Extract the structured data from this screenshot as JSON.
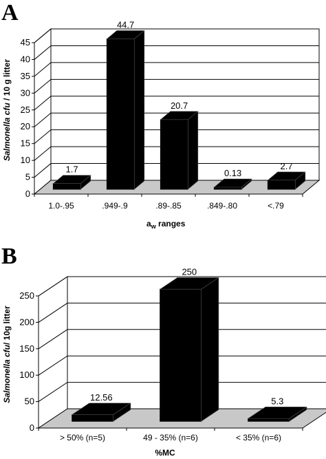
{
  "panels": {
    "a": {
      "letter": "A",
      "xlabel_main": "a",
      "xlabel_sub": "w",
      "xlabel_rest": " ranges",
      "ylabel_italic": "Salmonella cfu",
      "ylabel_rest": " / 10 g litter"
    },
    "b": {
      "letter": "B",
      "xlabel": "%MC",
      "ylabel_italic": "Salmonella cfu",
      "ylabel_rest": "/ 10g litter"
    }
  },
  "colors": {
    "bar": "#000000",
    "floor": "#c8c8c8",
    "grid": "#000000",
    "background": "#ffffff"
  },
  "chart_data": [
    {
      "type": "bar",
      "title": "",
      "xlabel": "aw ranges",
      "ylabel": "Salmonella cfu / 10 g litter",
      "categories": [
        "1.0-.95",
        ".949-.9",
        ".89-.85",
        ".849-.80",
        "<.79"
      ],
      "values": [
        1.7,
        44.7,
        20.7,
        0.13,
        2.7
      ],
      "value_labels": [
        "1.7",
        "44.7",
        "20.7",
        "0.13",
        "2.7"
      ],
      "yticks": [
        0,
        5,
        10,
        15,
        20,
        25,
        30,
        35,
        40,
        45
      ],
      "ylim": [
        0,
        45
      ],
      "grid": true,
      "style": "3d"
    },
    {
      "type": "bar",
      "title": "",
      "xlabel": "%MC",
      "ylabel": "Salmonella cfu/ 10g litter",
      "categories": [
        "> 50% (n=5)",
        "49 - 35% (n=6)",
        "< 35% (n=6)"
      ],
      "values": [
        12.56,
        250,
        5.3
      ],
      "value_labels": [
        "12.56",
        "250",
        "5.3"
      ],
      "yticks": [
        0,
        50,
        100,
        150,
        200,
        250
      ],
      "ylim": [
        0,
        250
      ],
      "grid": true,
      "style": "3d"
    }
  ]
}
